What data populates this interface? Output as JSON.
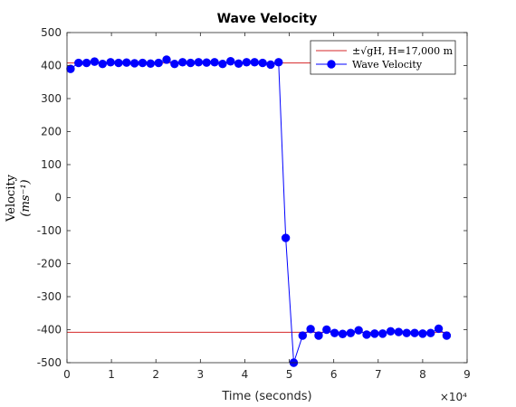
{
  "chart_data": {
    "type": "line",
    "title": "Wave Velocity",
    "xlabel": "Time (seconds)",
    "x_multiplier": "×10⁴",
    "ylabel_line1": "Velocity",
    "ylabel_line2": "(ms⁻¹)",
    "xlim": [
      0,
      90000
    ],
    "ylim": [
      -500,
      500
    ],
    "x_ticks": [
      0,
      10000,
      20000,
      30000,
      40000,
      50000,
      60000,
      70000,
      80000,
      90000
    ],
    "x_tick_labels": [
      "0",
      "1",
      "2",
      "3",
      "4",
      "5",
      "6",
      "7",
      "8",
      "9"
    ],
    "y_ticks": [
      -500,
      -400,
      -300,
      -200,
      -100,
      0,
      100,
      200,
      300,
      400,
      500
    ],
    "y_tick_labels": [
      "-500",
      "-400",
      "-300",
      "-200",
      "-100",
      "0",
      "100",
      "200",
      "300",
      "400",
      "500"
    ],
    "grid": false,
    "legend_position": "top-right",
    "legend": [
      "±√gH, H=17,000 m",
      "Wave Velocity"
    ],
    "reference_lines": {
      "name": "±√gH, H=17,000 m",
      "color": "#d62728",
      "values": [
        408,
        -408
      ],
      "x_range": [
        0,
        86000
      ]
    },
    "series": [
      {
        "name": "Wave Velocity",
        "color": "#0000ff",
        "x": [
          800,
          2600,
          4400,
          6200,
          8000,
          9800,
          11600,
          13400,
          15200,
          17000,
          18800,
          20600,
          22400,
          24200,
          26000,
          27800,
          29600,
          31400,
          33200,
          35000,
          36800,
          38600,
          40400,
          42200,
          44000,
          45800,
          47600,
          49200,
          51000,
          53000,
          54800,
          56600,
          58400,
          60200,
          62000,
          63800,
          65600,
          67400,
          69200,
          71000,
          72800,
          74600,
          76400,
          78200,
          80000,
          81800,
          83600,
          85400
        ],
        "y": [
          390,
          408,
          408,
          412,
          405,
          410,
          408,
          409,
          407,
          408,
          406,
          408,
          418,
          405,
          410,
          408,
          410,
          409,
          410,
          405,
          413,
          406,
          410,
          410,
          408,
          403,
          410,
          -122,
          -500,
          -418,
          -398,
          -418,
          -400,
          -410,
          -413,
          -410,
          -402,
          -415,
          -412,
          -412,
          -405,
          -407,
          -410,
          -410,
          -412,
          -410,
          -397,
          -418
        ]
      }
    ]
  }
}
